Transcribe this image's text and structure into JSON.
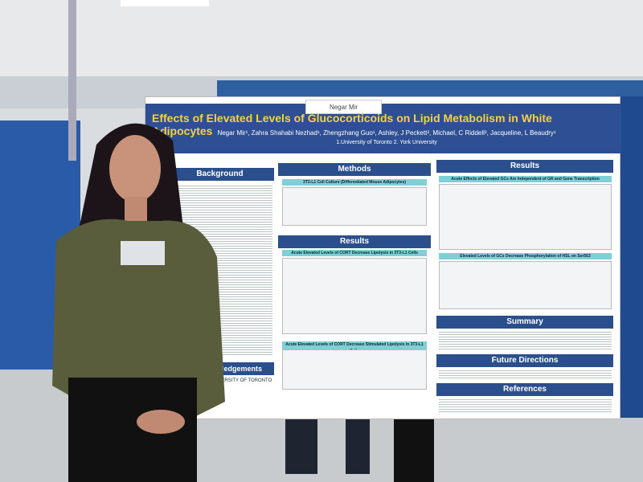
{
  "poster": {
    "title": "Effects of Elevated Levels of Glucocorticoids on Lipid Metabolism in White Adipocytes",
    "authors": "Negar Mir¹, Zahra Shahabi Nezhad¹, Zhengzhang Guo¹, Ashley, J Peckett², Michael, C Riddell², Jacqueline, L Beaudry¹",
    "affiliation": "1.University of Toronto 2. York University",
    "background": {
      "heading": "Background"
    },
    "methods": {
      "heading": "Methods",
      "subheading": "3T3-L1 Cell Culture (Differentiated Mouse Adipocytes)"
    },
    "results_middle": {
      "heading": "Results",
      "panel_1": "Acute Elevated Levels of CORT Decrease Lipolysis in 3T3-L1 Cells",
      "panel_2": "Acute Elevated Levels of CORT Decrease Stimulated Lipolysis in 3T3-L1 Cells"
    },
    "results_right": {
      "heading": "Results",
      "panel_1": "Acute Effects of Elevated GCs Are Independent of GR and Gene Transcription",
      "panel_2": "Elevated Levels of GCs Decrease Phosphorylation of HSL on Ser563"
    },
    "summary": {
      "heading": "Summary"
    },
    "future_directions": {
      "heading": "Future Directions"
    },
    "references": {
      "heading": "References"
    },
    "acknowledgements": {
      "heading": "ledgements"
    },
    "logo": "UNIVERSITY OF TORONTO"
  },
  "name_card": "Negar Mir"
}
